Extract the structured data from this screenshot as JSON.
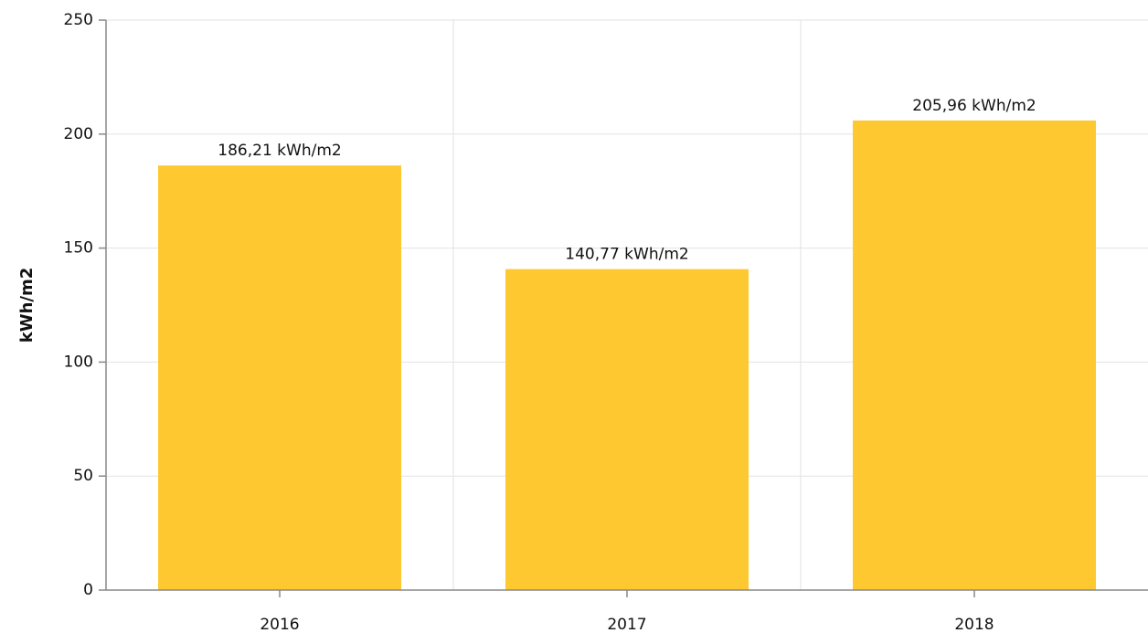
{
  "chart_data": {
    "type": "bar",
    "y_axis_label": "kWh/m2",
    "categories": [
      "2016",
      "2017",
      "2018"
    ],
    "values": [
      186.21,
      140.77,
      205.96
    ],
    "value_labels": [
      "186,21 kWh/m2",
      "140,77 kWh/m2",
      "205,96 kWh/m2"
    ],
    "color": "#fdc830",
    "ylim": [
      0,
      250
    ],
    "yticks": [
      0,
      50,
      100,
      150,
      200,
      250
    ],
    "grid": true
  }
}
